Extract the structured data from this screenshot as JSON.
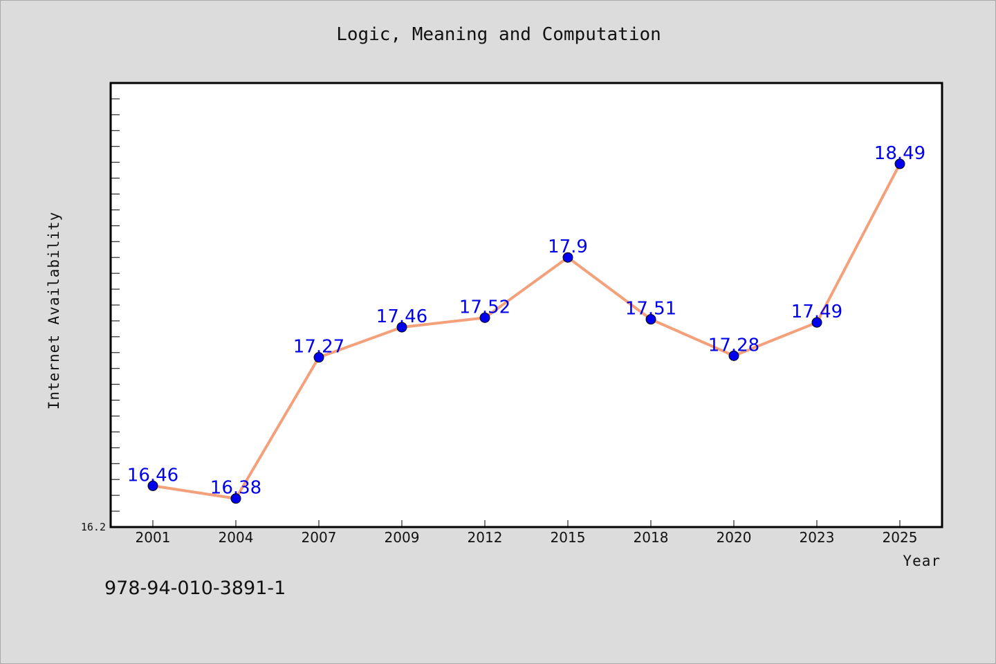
{
  "chart_data": {
    "type": "line",
    "title": "Logic, Meaning and Computation",
    "xlabel": "Year",
    "ylabel": "Internet Availability",
    "categories": [
      "2001",
      "2004",
      "2007",
      "2009",
      "2012",
      "2015",
      "2018",
      "2020",
      "2023",
      "2025"
    ],
    "series": [
      {
        "values": [
          16.46,
          16.38,
          17.27,
          17.46,
          17.52,
          17.9,
          17.51,
          17.28,
          17.49,
          18.49
        ]
      }
    ],
    "data_labels": [
      "16.46",
      "16.38",
      "17.27",
      "17.46",
      "17.52",
      "17.9",
      "17.51",
      "17.28",
      "17.49",
      "18.49"
    ],
    "y_tick_label": "16.2",
    "ylim": [
      16.2,
      19.0
    ],
    "grid": false,
    "legend": "none",
    "colors": {
      "line": "#f4a07a",
      "marker": "#0000ee",
      "data_label": "#0000ee",
      "background": "#dcdcdc",
      "plot_background": "#ffffff"
    }
  },
  "footer": {
    "isbn": "978-94-010-3891-1"
  }
}
